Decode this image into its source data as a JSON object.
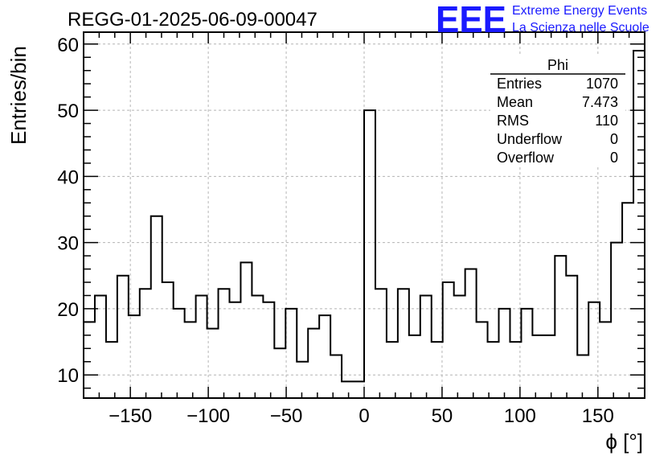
{
  "logo": {
    "letters": "EEE",
    "line1": "Extreme Energy Events",
    "line2": "La Scienza nelle Scuole",
    "color": "#1a1aff"
  },
  "stats": {
    "name": "Phi",
    "rows": [
      {
        "label": "Entries",
        "value": "1070"
      },
      {
        "label": "Mean",
        "value": "7.473"
      },
      {
        "label": "RMS",
        "value": "110"
      },
      {
        "label": "Underflow",
        "value": "0"
      },
      {
        "label": "Overflow",
        "value": "0"
      }
    ]
  },
  "chart_data": {
    "type": "histogram",
    "title": "REGG-01-2025-06-09-00047",
    "xlabel": "ϕ [°]",
    "ylabel": "Entries/bin",
    "xlim": [
      -180,
      180
    ],
    "ylim": [
      6.5,
      61.8
    ],
    "bin_width": 7.2,
    "xticks": [
      -150,
      -100,
      -50,
      0,
      50,
      100,
      150
    ],
    "xtick_labels": [
      "−150",
      "−100",
      "−50",
      "0",
      "50",
      "100",
      "150"
    ],
    "yticks": [
      10,
      20,
      30,
      40,
      50,
      60
    ],
    "ytick_labels": [
      "10",
      "20",
      "30",
      "40",
      "50",
      "60"
    ],
    "grid": true,
    "values": [
      18,
      22,
      15,
      25,
      19,
      23,
      34,
      24,
      20,
      18,
      22,
      17,
      23,
      21,
      27,
      22,
      21,
      14,
      20,
      12,
      17,
      19,
      13,
      9,
      9,
      50,
      23,
      15,
      23,
      16,
      22,
      15,
      24,
      22,
      26,
      18,
      15,
      20,
      15,
      20,
      16,
      16,
      28,
      25,
      13,
      21,
      18,
      30,
      36,
      59
    ]
  }
}
